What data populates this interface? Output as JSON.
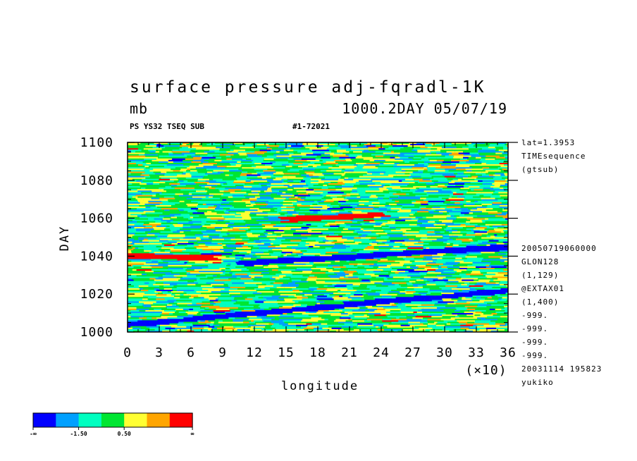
{
  "header": {
    "title": "surface pressure adj-fqradl-1K",
    "units": "mb",
    "right_title": "1000.2DAY 05/07/19",
    "left_tag": "PS YS32 TSEQ SUB",
    "right_tag": "#1-72021"
  },
  "right_info": {
    "top": [
      "lat=1.3953",
      "TIMEsequence",
      "(gtsub)"
    ],
    "bottom": [
      "20050719060000",
      "GLON128",
      "(1,129)",
      "@EXTAX01",
      "(1,400)",
      "-999.",
      "-999.",
      "-999.",
      "-999.",
      "20031114 195823",
      "yukiko"
    ]
  },
  "colorbar": {
    "colors": [
      "#0000ff",
      "#00a0ff",
      "#00ffc0",
      "#00e632",
      "#ffff32",
      "#ffa500",
      "#ff0000"
    ],
    "labels": [
      "-∞",
      "-1.50",
      "0.50",
      "∞"
    ]
  },
  "chart_data": {
    "type": "heatmap",
    "title": "surface pressure adj-fqradl-1K",
    "xlabel": "longitude",
    "ylabel": "DAY",
    "x_multiplier_label": "(×10)",
    "xlim": [
      0,
      36
    ],
    "ylim": [
      1000,
      1100
    ],
    "x_ticks": [
      "0",
      "3",
      "6",
      "9",
      "12",
      "15",
      "18",
      "21",
      "24",
      "27",
      "30",
      "33",
      "36"
    ],
    "y_ticks": [
      "1000",
      "1020",
      "1040",
      "1060",
      "1080",
      "1100"
    ],
    "color_levels": [
      "-∞",
      "-1.50",
      "0.50",
      "∞"
    ],
    "features": [
      {
        "name": "red band",
        "day_start": 1040,
        "day_end": 1039,
        "lon_start": 0,
        "lon_end": 8
      },
      {
        "name": "blue band",
        "day_start": 1004,
        "day_end": 1022,
        "lon_start": 0,
        "lon_end": 36
      },
      {
        "name": "blue band",
        "day_start": 1036,
        "day_end": 1045,
        "lon_start": 10,
        "lon_end": 36
      },
      {
        "name": "red band",
        "day_start": 1059,
        "day_end": 1062,
        "lon_start": 14,
        "lon_end": 24
      }
    ]
  }
}
